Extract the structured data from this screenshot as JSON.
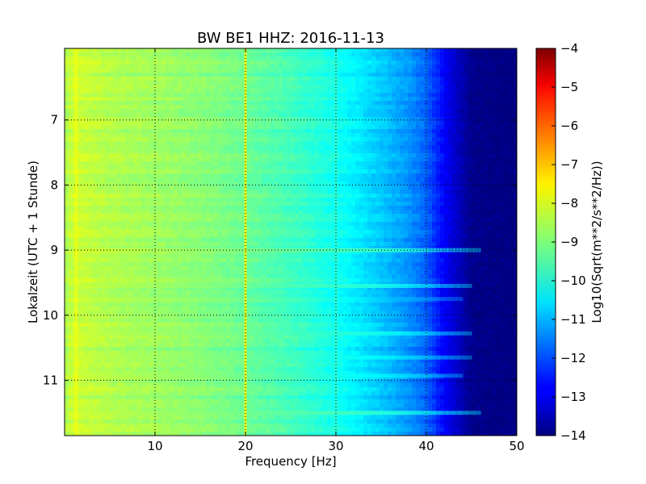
{
  "chart_data": {
    "type": "heatmap",
    "title": "BW BE1 HHZ: 2016-11-13",
    "xlabel": "Frequency [Hz]",
    "ylabel": "Lokalzeit (UTC + 1 Stunde)",
    "xlim": [
      0,
      50
    ],
    "ylim": [
      5.9,
      11.85
    ],
    "y_inverted": true,
    "x_ticks": [
      "10",
      "20",
      "30",
      "40",
      "50"
    ],
    "x_tick_values": [
      10,
      20,
      30,
      40,
      50
    ],
    "y_ticks": [
      "7",
      "8",
      "9",
      "10",
      "11"
    ],
    "y_tick_values": [
      7,
      8,
      9,
      10,
      11
    ],
    "grid": true,
    "colorbar": {
      "label": "Log10(Sqrt(m**2/s**2/Hz))",
      "range": [
        -14,
        -4
      ],
      "ticks": [
        "−4",
        "−5",
        "−6",
        "−7",
        "−8",
        "−9",
        "−10",
        "−11",
        "−12",
        "−13",
        "−14"
      ],
      "tick_values": [
        -4,
        -5,
        -6,
        -7,
        -8,
        -9,
        -10,
        -11,
        -12,
        -13,
        -14
      ],
      "colormap": "jet"
    },
    "profile": {
      "frequency_hz": [
        0,
        1,
        2,
        5,
        10,
        15,
        20,
        25,
        28,
        30,
        33,
        35,
        38,
        40,
        42,
        45,
        50
      ],
      "value": [
        -8.6,
        -8.2,
        -8.3,
        -8.5,
        -8.7,
        -8.9,
        -9.2,
        -9.6,
        -9.9,
        -10.1,
        -10.5,
        -10.8,
        -11.3,
        -11.8,
        -12.8,
        -13.9,
        -14.0
      ]
    },
    "features": [
      {
        "kind": "vertical",
        "frequency_hz": 1.3,
        "value": -7.9
      },
      {
        "kind": "vertical",
        "frequency_hz": 20.0,
        "value": -7.8
      },
      {
        "kind": "vertical",
        "frequency_hz": 30.0,
        "value": -9.8
      },
      {
        "kind": "horizontal",
        "time_h": 9.0,
        "value": -8.1,
        "fmax_hz": 46
      },
      {
        "kind": "horizontal",
        "time_h": 9.55,
        "value": -8.3,
        "fmax_hz": 45
      },
      {
        "kind": "horizontal",
        "time_h": 9.75,
        "value": -9.1,
        "fmax_hz": 44
      },
      {
        "kind": "horizontal",
        "time_h": 10.28,
        "value": -8.4,
        "fmax_hz": 45
      },
      {
        "kind": "horizontal",
        "time_h": 10.65,
        "value": -8.6,
        "fmax_hz": 45
      },
      {
        "kind": "horizontal",
        "time_h": 10.93,
        "value": -8.6,
        "fmax_hz": 44
      },
      {
        "kind": "horizontal",
        "time_h": 11.5,
        "value": -8.2,
        "fmax_hz": 46
      }
    ]
  }
}
